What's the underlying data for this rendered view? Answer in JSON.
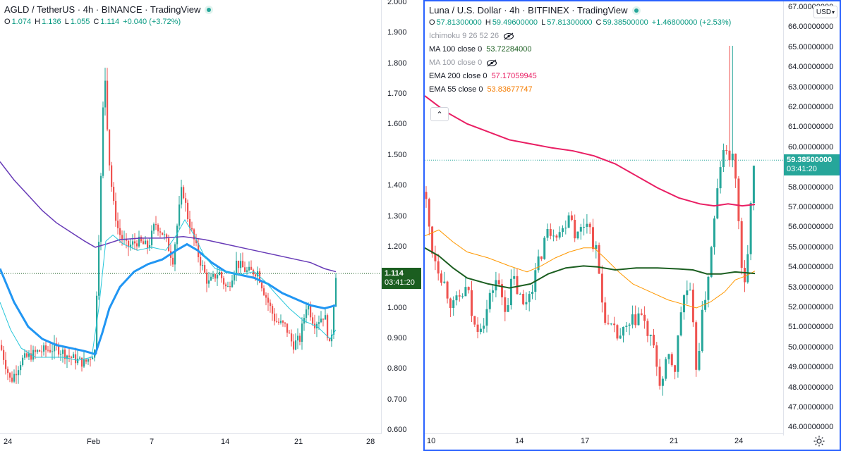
{
  "left": {
    "title": "AGLD / TetherUS · 4h · BINANCE · TradingView",
    "ohlc": {
      "o_label": "O",
      "o": "1.074",
      "h_label": "H",
      "h": "1.136",
      "l_label": "L",
      "l": "1.055",
      "c_label": "C",
      "c": "1.114",
      "change": "+0.040 (+3.72%)"
    },
    "price_labels": [
      "2.000",
      "1.900",
      "1.800",
      "1.700",
      "1.600",
      "1.500",
      "1.400",
      "1.300",
      "1.200",
      "1.100",
      "1.000",
      "0.900",
      "0.800",
      "0.700",
      "0.600"
    ],
    "time_labels": [
      "24",
      "Feb",
      "7",
      "14",
      "21",
      "28"
    ],
    "last_price": "1.114",
    "countdown": "03:41:20",
    "colors": {
      "up": "#26a69a",
      "down": "#ef5350",
      "ma_purple": "#673ab7",
      "ma_blue": "#2196f3",
      "ma_cyan": "#26c6da",
      "tag": "#1b5e20"
    }
  },
  "right": {
    "title": "Luna / U.S. Dollar · 4h · BITFINEX · TradingView",
    "ohlc": {
      "o_label": "O",
      "o": "57.81300000",
      "h_label": "H",
      "h": "59.49600000",
      "l_label": "L",
      "l": "57.81300000",
      "c_label": "C",
      "c": "59.38500000",
      "change": "+1.46800000 (+2.53%)"
    },
    "indicators": [
      {
        "label": "Ichimoku 9 26 52 26",
        "value": "",
        "hidden": true,
        "color": "#9598a1"
      },
      {
        "label": "MA 100 close 0",
        "value": "53.72284000",
        "hidden": false,
        "color": "#1b5e20"
      },
      {
        "label": "MA 100 close 0",
        "value": "",
        "hidden": true,
        "color": "#9598a1"
      },
      {
        "label": "EMA 200 close 0",
        "value": "57.17059945",
        "hidden": false,
        "color": "#e91e63"
      },
      {
        "label": "EMA 55 close 0",
        "value": "53.83677747",
        "hidden": false,
        "color": "#f57c00"
      }
    ],
    "currency": "USD",
    "price_labels": [
      "67.00000000",
      "66.00000000",
      "65.00000000",
      "64.00000000",
      "63.00000000",
      "62.00000000",
      "61.00000000",
      "60.00000000",
      "58.00000000",
      "57.00000000",
      "56.00000000",
      "55.00000000",
      "54.00000000",
      "53.00000000",
      "52.00000000",
      "51.00000000",
      "50.00000000",
      "49.00000000",
      "48.00000000",
      "47.00000000",
      "46.00000000"
    ],
    "time_labels": [
      "10",
      "14",
      "17",
      "21",
      "24"
    ],
    "last_price": "59.38500000",
    "countdown": "03:41:20",
    "colors": {
      "up": "#26a69a",
      "down": "#ef5350",
      "ema200": "#e91e63",
      "ema55": "#ff9800",
      "ma100": "#1b5e20",
      "tag": "#26a69a"
    }
  }
}
